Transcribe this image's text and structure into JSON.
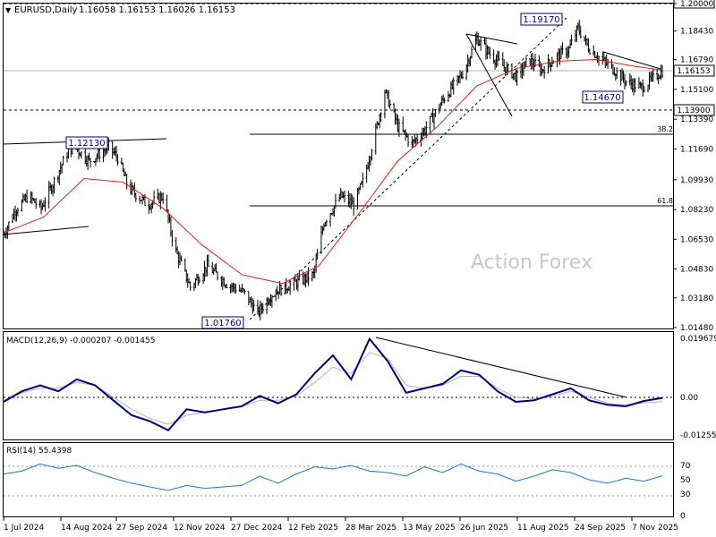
{
  "colors": {
    "background": "#ffffff",
    "grid": "#000000",
    "bars": "#000000",
    "ma": "#e0201b",
    "macd_main": "#000080",
    "macd_signal": "#b4b4b4",
    "rsi": "#1e78c8",
    "price_box_bg": "#ffffff",
    "last_price_bg": "#ffffff",
    "watermark": "#c8c8c8",
    "annotation_box": "#000080"
  },
  "main": {
    "header": {
      "arrow": "▼",
      "symbol": "EURUSD,Daily",
      "ohlc": "1.16058 1.16153 1.16026 1.16153"
    },
    "watermark": "Action Forex",
    "price_labels": [
      "1.20000",
      "1.18430",
      "1.16790",
      "1.15100",
      "1.13390",
      "1.11690",
      "1.09930",
      "1.08230",
      "1.06530",
      "1.04830",
      "1.03180",
      "1.01480"
    ],
    "last_price": "1.16153",
    "level_price": "1.13900",
    "annotations": {
      "high": "1.19170",
      "low_mid": "1.14670",
      "low": "1.01760",
      "prev_high": "1.12130"
    },
    "fib_labels": {
      "f382": "38.2",
      "f618": "61.8"
    }
  },
  "macd": {
    "header": "MACD(12,26,9) -0.000207 -0.001455",
    "labels": [
      "0.019679",
      "0.00",
      "-0.012552"
    ],
    "zero_label": "0.00"
  },
  "rsi": {
    "header": "RSI(14) 55.4398",
    "labels": [
      "70",
      "50",
      "30",
      "0"
    ]
  },
  "x_axis": {
    "dates": [
      "1 Jul 2024",
      "14 Aug 2024",
      "27 Sep 2024",
      "12 Nov 2024",
      "27 Dec 2024",
      "12 Feb 2025",
      "28 Mar 2025",
      "13 May 2025",
      "26 Jun 2025",
      "11 Aug 2025",
      "24 Sep 2025",
      "7 Nov 2025"
    ]
  },
  "chart_data": {
    "type": "ohlc",
    "symbol": "EURUSD",
    "timeframe": "Daily",
    "ylim": [
      1.0148,
      1.2
    ],
    "close_path": {
      "x": [
        "2024-07-01",
        "2024-07-10",
        "2024-07-20",
        "2024-07-30",
        "2024-08-10",
        "2024-08-20",
        "2024-08-25",
        "2024-09-05",
        "2024-09-20",
        "2024-09-27",
        "2024-10-05",
        "2024-10-20",
        "2024-11-01",
        "2024-11-10",
        "2024-11-22",
        "2024-12-05",
        "2024-12-20",
        "2025-01-02",
        "2025-01-13",
        "2025-01-25",
        "2025-02-10",
        "2025-02-25",
        "2025-03-05",
        "2025-03-18",
        "2025-03-28",
        "2025-04-05",
        "2025-04-15",
        "2025-04-21",
        "2025-05-01",
        "2025-05-12",
        "2025-05-22",
        "2025-06-05",
        "2025-06-20",
        "2025-07-01",
        "2025-07-10",
        "2025-07-20",
        "2025-08-01",
        "2025-08-10",
        "2025-08-20",
        "2025-09-01",
        "2025-09-10",
        "2025-09-17",
        "2025-09-25",
        "2025-10-05",
        "2025-10-15",
        "2025-10-25",
        "2025-11-05",
        "2025-11-12",
        "2025-11-21"
      ],
      "close": [
        1.068,
        1.082,
        1.09,
        1.083,
        1.1,
        1.116,
        1.118,
        1.11,
        1.118,
        1.112,
        1.095,
        1.085,
        1.09,
        1.06,
        1.038,
        1.05,
        1.04,
        1.035,
        1.023,
        1.035,
        1.04,
        1.045,
        1.075,
        1.09,
        1.085,
        1.1,
        1.13,
        1.15,
        1.13,
        1.12,
        1.128,
        1.145,
        1.16,
        1.18,
        1.172,
        1.165,
        1.158,
        1.168,
        1.162,
        1.17,
        1.174,
        1.186,
        1.175,
        1.168,
        1.162,
        1.155,
        1.152,
        1.156,
        1.1615
      ]
    },
    "annotated_levels": {
      "high": 1.1917,
      "low_mid": 1.1467,
      "low": 1.0176,
      "prev_high": 1.1213,
      "horizontal": 1.139,
      "last": 1.16153
    },
    "fib_retracements": [
      {
        "label": "38.2",
        "value": 1.1242
      },
      {
        "label": "61.8",
        "value": 1.0834
      }
    ],
    "ma": {
      "x": [
        "2024-07-01",
        "2024-08-01",
        "2024-09-01",
        "2024-10-01",
        "2024-11-01",
        "2024-12-01",
        "2025-01-01",
        "2025-02-01",
        "2025-03-01",
        "2025-04-01",
        "2025-05-01",
        "2025-06-01",
        "2025-07-01",
        "2025-08-01",
        "2025-09-01",
        "2025-10-01",
        "2025-11-01",
        "2025-11-21"
      ],
      "y": [
        1.069,
        1.078,
        1.1,
        1.098,
        1.083,
        1.062,
        1.045,
        1.04,
        1.05,
        1.08,
        1.11,
        1.13,
        1.153,
        1.163,
        1.167,
        1.168,
        1.164,
        1.162
      ]
    },
    "macd": {
      "ylim": [
        -0.012552,
        0.019679
      ],
      "main": [
        -0.0015,
        0.002,
        0.004,
        0.002,
        0.006,
        0.004,
        -0.001,
        -0.006,
        -0.008,
        -0.011,
        -0.004,
        -0.005,
        -0.004,
        -0.003,
        0.0005,
        -0.002,
        0.001,
        0.008,
        0.014,
        0.006,
        0.0195,
        0.012,
        0.0015,
        0.003,
        0.0045,
        0.009,
        0.0075,
        0.002,
        -0.0015,
        -0.001,
        0.001,
        0.003,
        -0.001,
        -0.0025,
        -0.003,
        -0.0012,
        -0.000207
      ],
      "signal": [
        -0.001,
        0.0015,
        0.003,
        0.003,
        0.005,
        0.004,
        0.0,
        -0.004,
        -0.007,
        -0.009,
        -0.006,
        -0.005,
        -0.004,
        -0.003,
        -0.001,
        -0.001,
        0.0005,
        0.005,
        0.01,
        0.008,
        0.015,
        0.013,
        0.004,
        0.003,
        0.004,
        0.007,
        0.007,
        0.003,
        0.0,
        -0.0005,
        0.0005,
        0.002,
        0.0,
        -0.002,
        -0.0025,
        -0.0018,
        -0.001455
      ]
    },
    "rsi": {
      "ylim": [
        0,
        100
      ],
      "levels": [
        70,
        50,
        30
      ],
      "values": [
        58,
        62,
        72,
        66,
        70,
        60,
        52,
        45,
        40,
        35,
        42,
        38,
        40,
        42,
        55,
        45,
        58,
        68,
        65,
        70,
        62,
        60,
        55,
        68,
        60,
        72,
        62,
        58,
        48,
        55,
        64,
        60,
        50,
        45,
        52,
        48,
        55.44
      ]
    }
  }
}
